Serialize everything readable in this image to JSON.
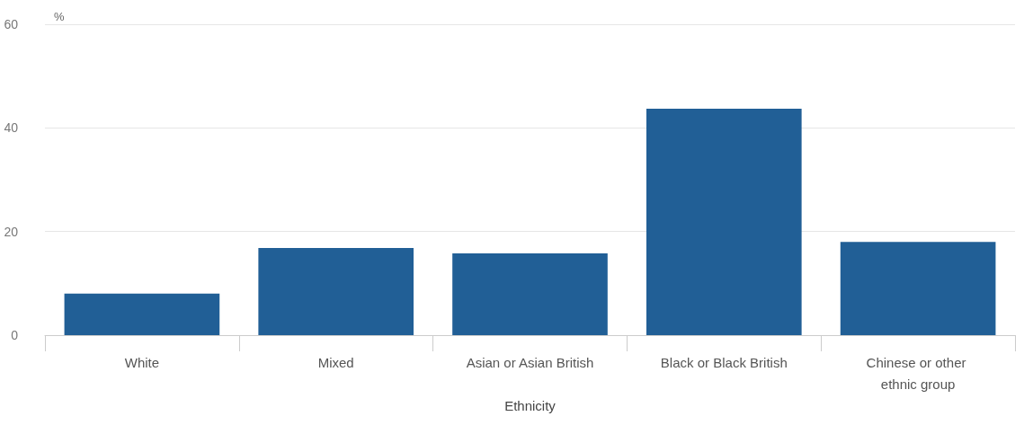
{
  "chart_data": {
    "type": "bar",
    "xlabel": "Ethnicity",
    "ylabel": "%",
    "categories": [
      "White",
      "Mixed",
      "Asian or Asian British",
      "Black or Black British",
      "Chinese or other ethnic group"
    ],
    "values": [
      8.0,
      16.8,
      15.8,
      43.7,
      18.0
    ],
    "color": "#215f96",
    "ylim": [
      0,
      60
    ],
    "yticks": [
      0,
      20,
      40,
      60
    ],
    "grid": "y"
  }
}
